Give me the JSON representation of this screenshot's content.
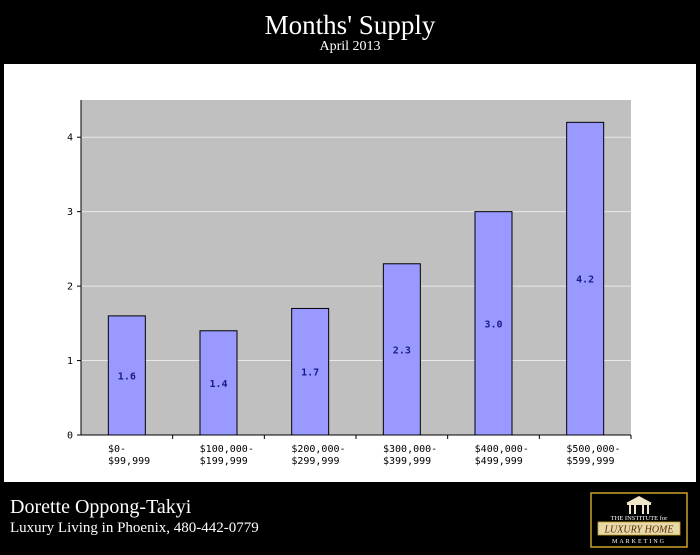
{
  "header": {
    "title": "Months' Supply",
    "subtitle": "April 2013"
  },
  "chart_data": {
    "type": "bar",
    "categories": [
      [
        "$0-",
        "$99,999"
      ],
      [
        "$100,000-",
        "$199,999"
      ],
      [
        "$200,000-",
        "$299,999"
      ],
      [
        "$300,000-",
        "$399,999"
      ],
      [
        "$400,000-",
        "$499,999"
      ],
      [
        "$500,000-",
        "$599,999"
      ]
    ],
    "values": [
      1.6,
      1.4,
      1.7,
      2.3,
      3.0,
      4.2
    ],
    "value_labels": [
      "1.6",
      "1.4",
      "1.7",
      "2.3",
      "3.0",
      "4.2"
    ],
    "yticks": [
      0,
      1,
      2,
      3,
      4
    ],
    "ylim": [
      0,
      4.5
    ],
    "grid": true,
    "colors": {
      "bar": "#9999ff",
      "plot_bg": "#c0c0c0",
      "grid": "#e8e8e8",
      "label": "#1a1a8c"
    }
  },
  "footer": {
    "agent_name": "Dorette Oppong-Takyi",
    "agent_tagline": "Luxury Living in Phoenix, 480-442-0779",
    "logo": {
      "line1": "THE INSTITUTE for",
      "line2": "LUXURY HOME",
      "line3": "MARKETING"
    }
  }
}
